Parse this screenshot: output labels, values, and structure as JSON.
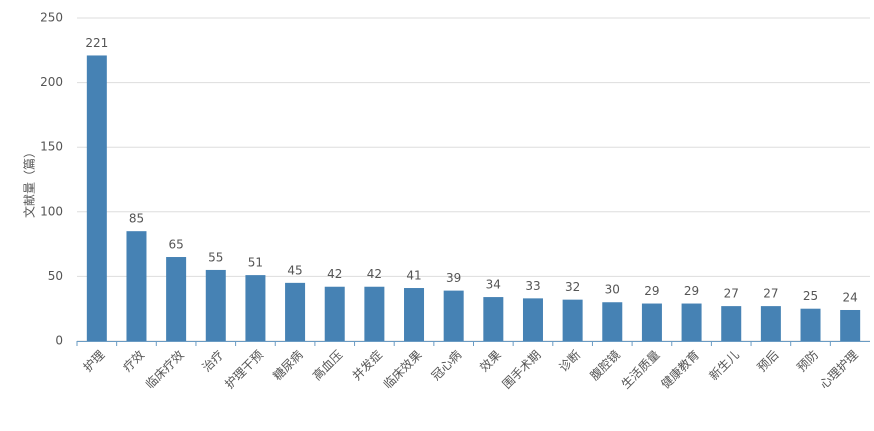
{
  "chart_data": {
    "type": "bar",
    "y_label": "文献量（篇）",
    "categories": [
      "护理",
      "疗效",
      "临床疗效",
      "治疗",
      "护理干预",
      "糖尿病",
      "高血压",
      "并发症",
      "临床效果",
      "冠心病",
      "效果",
      "围手术期",
      "诊断",
      "腹腔镜",
      "生活质量",
      "健康教育",
      "新生儿",
      "预后",
      "预防",
      "心理护理"
    ],
    "values": [
      221,
      85,
      65,
      55,
      51,
      45,
      42,
      42,
      41,
      39,
      34,
      33,
      32,
      30,
      29,
      29,
      27,
      27,
      25,
      24
    ],
    "color": "#4682b4",
    "ylim": [
      0,
      250
    ],
    "yticks": [
      0,
      50,
      100,
      150,
      200,
      250
    ],
    "grid": true
  }
}
